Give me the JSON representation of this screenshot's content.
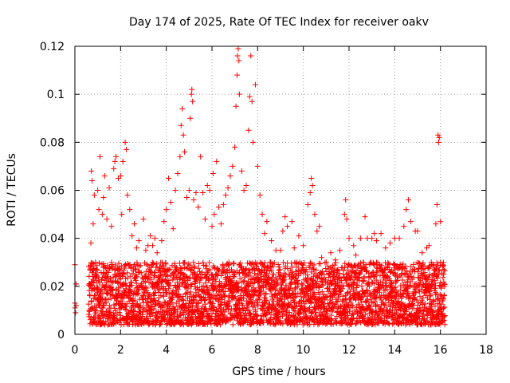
{
  "chart_data": {
    "type": "scatter",
    "title": "Day 174 of 2025, Rate Of TEC Index for receiver oakv",
    "xlabel": "GPS time / hours",
    "ylabel": "ROTI / TECUs",
    "xlim": [
      0,
      18
    ],
    "ylim": [
      0,
      0.12
    ],
    "xticks": [
      0,
      2,
      4,
      6,
      8,
      10,
      12,
      14,
      16,
      18
    ],
    "xtick_labels": [
      "0",
      "2",
      "4",
      "6",
      "8",
      "10",
      "12",
      "14",
      "16",
      "18"
    ],
    "yticks": [
      0,
      0.02,
      0.04,
      0.06,
      0.08,
      0.1,
      0.12
    ],
    "ytick_labels": [
      "0",
      "0.02",
      "0.04",
      "0.06",
      "0.08",
      "0.1",
      "0.12"
    ],
    "grid": true,
    "marker": "+",
    "color": "#ff0000",
    "series": [
      {
        "name": "ROTI",
        "points": [
          [
            0.0,
            0.011
          ],
          [
            0.0,
            0.013
          ],
          [
            0.0,
            0.029
          ],
          [
            0.03,
            0.009
          ],
          [
            0.05,
            0.012
          ],
          [
            0.05,
            0.021
          ],
          [
            0.7,
            0.038
          ],
          [
            0.72,
            0.068
          ],
          [
            0.75,
            0.064
          ],
          [
            0.8,
            0.046
          ],
          [
            0.85,
            0.058
          ],
          [
            0.9,
            0.03
          ],
          [
            1.0,
            0.06
          ],
          [
            1.05,
            0.052
          ],
          [
            1.1,
            0.074
          ],
          [
            1.2,
            0.05
          ],
          [
            1.25,
            0.057
          ],
          [
            1.3,
            0.066
          ],
          [
            1.4,
            0.048
          ],
          [
            1.5,
            0.061
          ],
          [
            1.6,
            0.045
          ],
          [
            1.7,
            0.069
          ],
          [
            1.75,
            0.072
          ],
          [
            1.8,
            0.074
          ],
          [
            1.9,
            0.065
          ],
          [
            2.0,
            0.066
          ],
          [
            2.05,
            0.05
          ],
          [
            2.1,
            0.072
          ],
          [
            2.2,
            0.08
          ],
          [
            2.25,
            0.077
          ],
          [
            2.3,
            0.058
          ],
          [
            2.4,
            0.052
          ],
          [
            2.5,
            0.041
          ],
          [
            2.6,
            0.046
          ],
          [
            2.7,
            0.036
          ],
          [
            2.8,
            0.039
          ],
          [
            3.0,
            0.048
          ],
          [
            3.1,
            0.035
          ],
          [
            3.2,
            0.037
          ],
          [
            3.3,
            0.041
          ],
          [
            3.4,
            0.037
          ],
          [
            3.5,
            0.04
          ],
          [
            3.6,
            0.034
          ],
          [
            3.8,
            0.039
          ],
          [
            3.9,
            0.047
          ],
          [
            4.0,
            0.052
          ],
          [
            4.1,
            0.065
          ],
          [
            4.2,
            0.055
          ],
          [
            4.3,
            0.044
          ],
          [
            4.4,
            0.06
          ],
          [
            4.5,
            0.067
          ],
          [
            4.6,
            0.074
          ],
          [
            4.65,
            0.087
          ],
          [
            4.7,
            0.094
          ],
          [
            4.75,
            0.083
          ],
          [
            4.8,
            0.076
          ],
          [
            4.9,
            0.057
          ],
          [
            5.0,
            0.06
          ],
          [
            5.05,
            0.09
          ],
          [
            5.1,
            0.1
          ],
          [
            5.12,
            0.102
          ],
          [
            5.15,
            0.097
          ],
          [
            5.2,
            0.056
          ],
          [
            5.3,
            0.059
          ],
          [
            5.4,
            0.053
          ],
          [
            5.5,
            0.074
          ],
          [
            5.6,
            0.059
          ],
          [
            5.7,
            0.048
          ],
          [
            5.8,
            0.062
          ],
          [
            5.9,
            0.06
          ],
          [
            6.0,
            0.045
          ],
          [
            6.05,
            0.067
          ],
          [
            6.1,
            0.05
          ],
          [
            6.2,
            0.072
          ],
          [
            6.3,
            0.053
          ],
          [
            6.4,
            0.046
          ],
          [
            6.5,
            0.054
          ],
          [
            6.6,
            0.058
          ],
          [
            6.7,
            0.061
          ],
          [
            6.8,
            0.066
          ],
          [
            6.9,
            0.07
          ],
          [
            7.0,
            0.078
          ],
          [
            7.05,
            0.095
          ],
          [
            7.1,
            0.108
          ],
          [
            7.12,
            0.116
          ],
          [
            7.15,
            0.119
          ],
          [
            7.18,
            0.114
          ],
          [
            7.2,
            0.1
          ],
          [
            7.3,
            0.068
          ],
          [
            7.4,
            0.06
          ],
          [
            7.5,
            0.062
          ],
          [
            7.6,
            0.085
          ],
          [
            7.65,
            0.099
          ],
          [
            7.7,
            0.116
          ],
          [
            7.75,
            0.097
          ],
          [
            7.8,
            0.08
          ],
          [
            7.9,
            0.104
          ],
          [
            8.0,
            0.07
          ],
          [
            8.1,
            0.058
          ],
          [
            8.2,
            0.05
          ],
          [
            8.3,
            0.042
          ],
          [
            8.4,
            0.047
          ],
          [
            8.6,
            0.039
          ],
          [
            8.8,
            0.035
          ],
          [
            9.0,
            0.035
          ],
          [
            9.1,
            0.043
          ],
          [
            9.2,
            0.049
          ],
          [
            9.3,
            0.045
          ],
          [
            9.5,
            0.047
          ],
          [
            9.6,
            0.036
          ],
          [
            9.8,
            0.041
          ],
          [
            10.0,
            0.037
          ],
          [
            10.2,
            0.054
          ],
          [
            10.3,
            0.059
          ],
          [
            10.35,
            0.065
          ],
          [
            10.4,
            0.062
          ],
          [
            10.5,
            0.05
          ],
          [
            10.6,
            0.043
          ],
          [
            10.7,
            0.045
          ],
          [
            10.8,
            0.032
          ],
          [
            11.0,
            0.03
          ],
          [
            11.2,
            0.034
          ],
          [
            11.4,
            0.031
          ],
          [
            11.6,
            0.035
          ],
          [
            11.8,
            0.05
          ],
          [
            11.85,
            0.056
          ],
          [
            11.9,
            0.048
          ],
          [
            12.0,
            0.04
          ],
          [
            12.2,
            0.037
          ],
          [
            12.3,
            0.033
          ],
          [
            12.5,
            0.04
          ],
          [
            12.7,
            0.049
          ],
          [
            12.8,
            0.04
          ],
          [
            13.0,
            0.04
          ],
          [
            13.1,
            0.042
          ],
          [
            13.2,
            0.039
          ],
          [
            13.4,
            0.042
          ],
          [
            13.6,
            0.036
          ],
          [
            13.8,
            0.038
          ],
          [
            14.0,
            0.04
          ],
          [
            14.2,
            0.04
          ],
          [
            14.4,
            0.045
          ],
          [
            14.5,
            0.052
          ],
          [
            14.6,
            0.056
          ],
          [
            14.7,
            0.047
          ],
          [
            14.9,
            0.043
          ],
          [
            15.0,
            0.043
          ],
          [
            15.2,
            0.034
          ],
          [
            15.4,
            0.036
          ],
          [
            15.5,
            0.037
          ],
          [
            15.6,
            0.03
          ],
          [
            15.8,
            0.046
          ],
          [
            15.85,
            0.054
          ],
          [
            15.9,
            0.083
          ],
          [
            15.92,
            0.08
          ],
          [
            15.95,
            0.082
          ],
          [
            16.0,
            0.047
          ],
          [
            16.1,
            0.029
          ],
          [
            16.15,
            0.027
          ]
        ]
      }
    ],
    "dense_band": {
      "x_start": 0.6,
      "x_end": 16.2,
      "typical_min": 0.004,
      "typical_max": 0.03,
      "note": "approximately 3500 overlapping measurements"
    }
  }
}
